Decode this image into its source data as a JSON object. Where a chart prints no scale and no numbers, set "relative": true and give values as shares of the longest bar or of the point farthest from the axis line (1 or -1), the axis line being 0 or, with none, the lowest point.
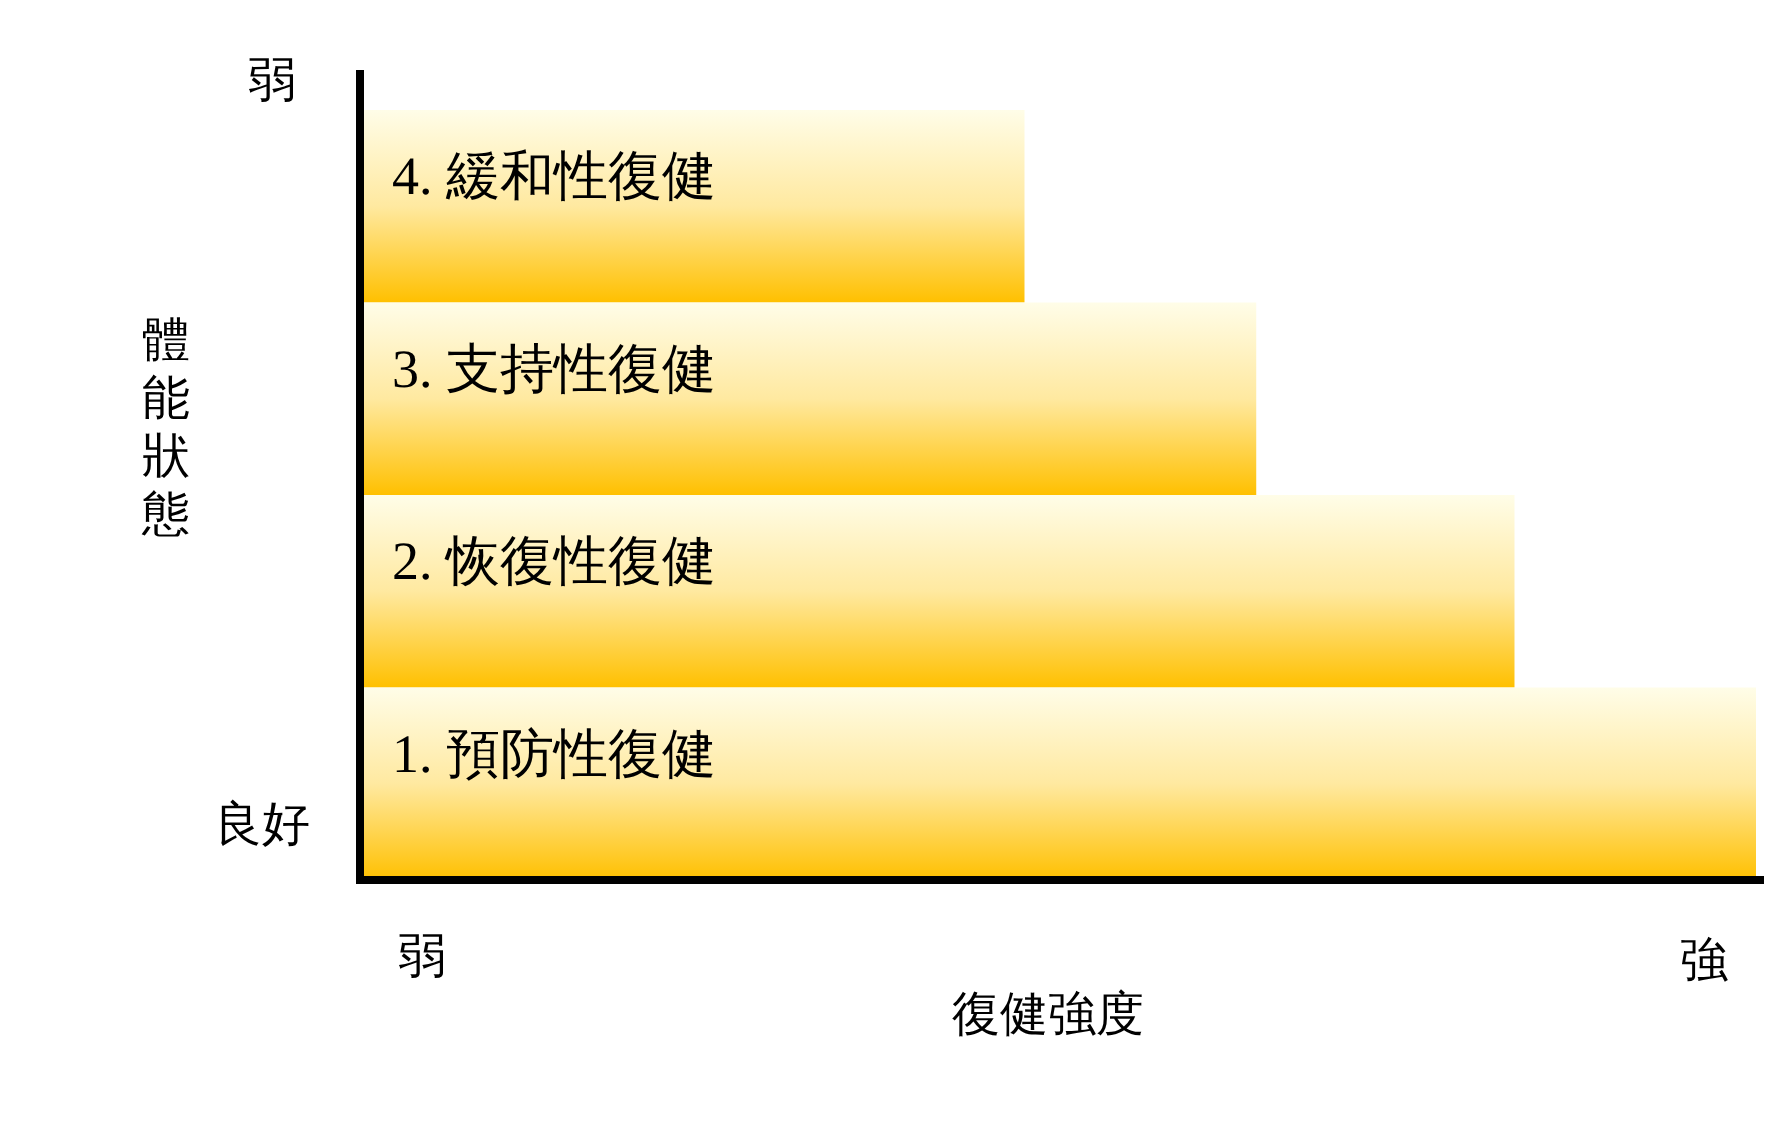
{
  "chart_data": {
    "type": "bar",
    "orientation": "horizontal",
    "relative": true,
    "categories": [
      "4. 緩和性復健",
      "3. 支持性復健",
      "2. 恢復性復健",
      "1. 預防性復健"
    ],
    "values": [
      0.476,
      0.642,
      0.827,
      1
    ],
    "color": "#ffc000",
    "xlabel": "復健強度",
    "ylabel": "體能狀態",
    "annotations": [
      "弱",
      "良好",
      "弱",
      "強"
    ]
  }
}
